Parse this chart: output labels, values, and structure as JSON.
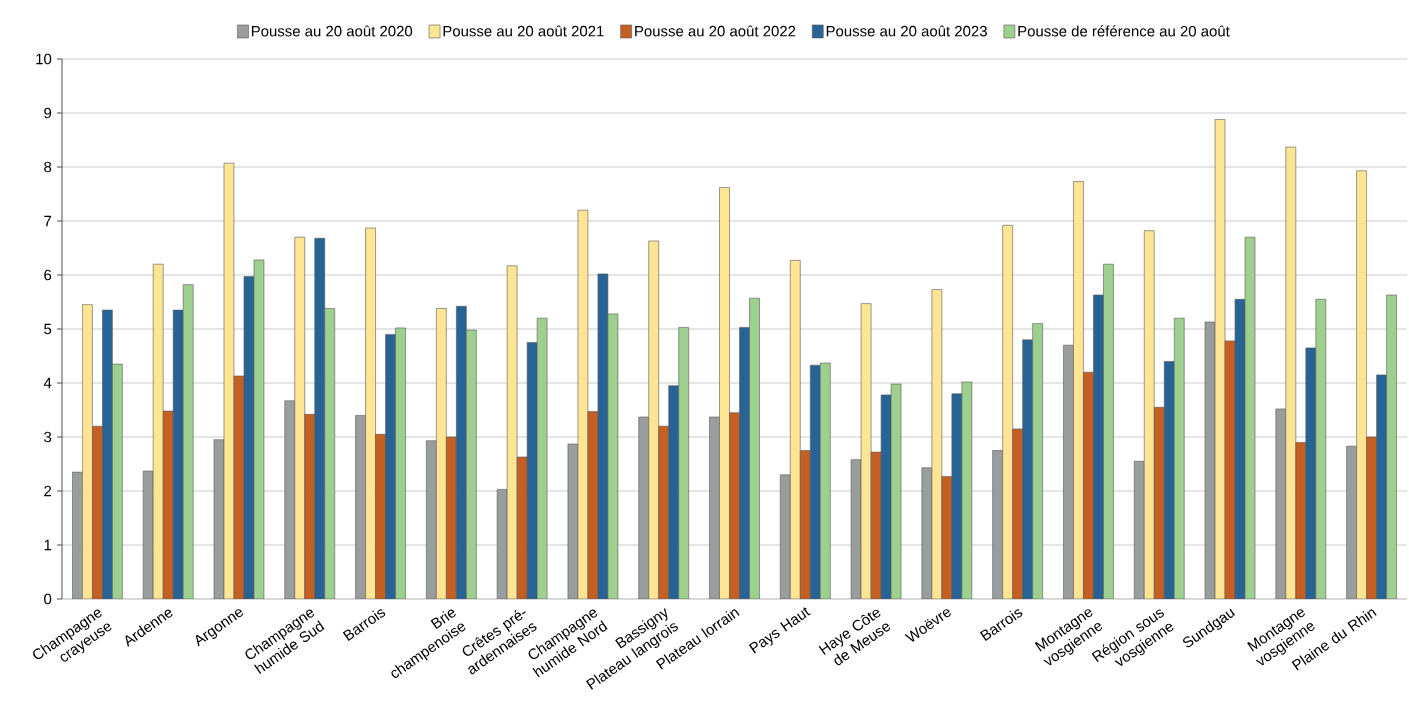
{
  "chart_data": {
    "type": "bar",
    "categories": [
      "Champagne crayeuse",
      "Ardenne",
      "Argonne",
      "Champagne humide Sud",
      "Barrois",
      "Brie champenoise",
      "Crêtes pré-ardennaises",
      "Champagne humide Nord",
      "Bassigny Plateau langrois",
      "Plateau lorrain",
      "Pays Haut",
      "Haye Côte de Meuse",
      "Woëvre",
      "Barrois",
      "Montagne vosgienne",
      "Région sous vosgienne",
      "Sundgau",
      "Montagne vosgienne",
      "Plaine du Rhin"
    ],
    "series": [
      {
        "name": "Pousse au 20 août 2020",
        "color": "#9a9d9e",
        "values": [
          2.35,
          2.37,
          2.95,
          3.67,
          3.4,
          2.93,
          2.03,
          2.87,
          3.37,
          3.37,
          2.3,
          2.58,
          2.43,
          2.75,
          4.7,
          2.55,
          5.13,
          3.52,
          2.83
        ]
      },
      {
        "name": "Pousse au 20 août 2021",
        "color": "#fde594",
        "values": [
          5.45,
          6.2,
          8.07,
          6.7,
          6.87,
          5.38,
          6.17,
          7.2,
          6.63,
          7.62,
          6.27,
          5.47,
          5.73,
          6.92,
          7.73,
          6.82,
          8.88,
          8.37,
          7.93
        ]
      },
      {
        "name": "Pousse au 20 août 2022",
        "color": "#c55f22",
        "values": [
          3.2,
          3.48,
          4.13,
          3.42,
          3.05,
          3.0,
          2.63,
          3.47,
          3.2,
          3.45,
          2.75,
          2.72,
          2.27,
          3.15,
          4.2,
          3.55,
          4.78,
          2.9,
          3.0
        ]
      },
      {
        "name": "Pousse au 20 août 2023",
        "color": "#276394",
        "values": [
          5.35,
          5.35,
          5.97,
          6.68,
          4.9,
          5.42,
          4.75,
          6.02,
          3.95,
          5.03,
          4.33,
          3.78,
          3.8,
          4.8,
          5.63,
          4.4,
          5.55,
          4.65,
          4.15
        ]
      },
      {
        "name": "Pousse de référence au 20 août",
        "color": "#9dd08f",
        "values": [
          4.35,
          5.82,
          6.28,
          5.38,
          5.02,
          4.98,
          5.2,
          5.28,
          5.03,
          5.57,
          4.37,
          3.98,
          4.02,
          5.1,
          6.2,
          5.2,
          6.7,
          5.55,
          5.63
        ]
      }
    ],
    "ylim": [
      0,
      10
    ],
    "yticks": [
      0,
      1,
      2,
      3,
      4,
      5,
      6,
      7,
      8,
      9,
      10
    ],
    "grid": "y",
    "legend": "top"
  }
}
